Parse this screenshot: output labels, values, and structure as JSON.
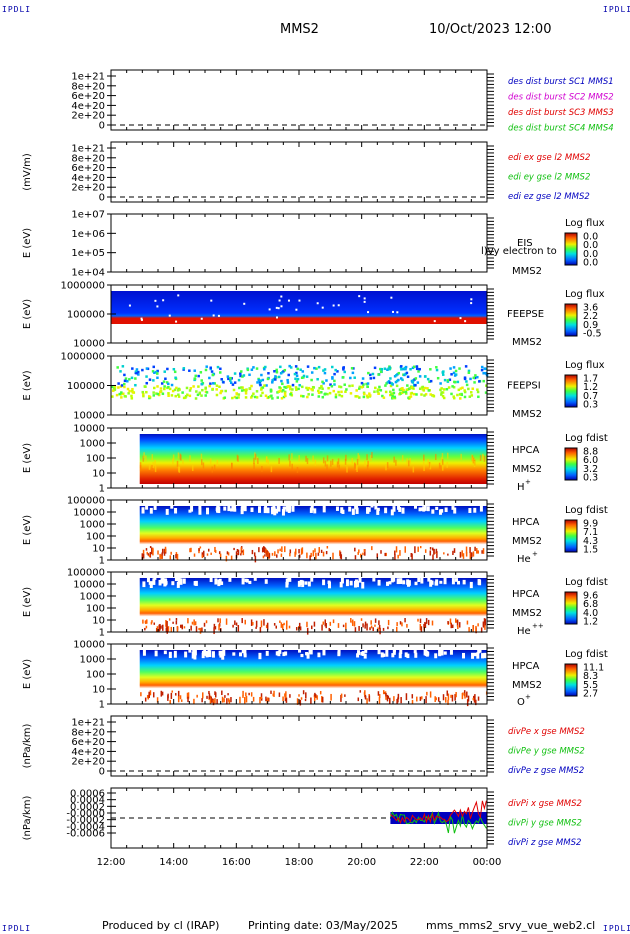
{
  "header": {
    "corner_tl": "IPDLI",
    "corner_tr": "IPDLI",
    "corner_bl": "IPDLI",
    "corner_br": "IPDLI",
    "spacecraft": "MMS2",
    "datetime": "10/Oct/2023 12:00"
  },
  "footer": {
    "producer": "Produced by cl (IRAP)",
    "printing_date": "Printing date: 03/May/2025",
    "script": "mms_mms2_srvy_vue_web2.cl"
  },
  "colors": {
    "red": "#e00000",
    "magenta": "#d000d0",
    "green": "#10c010",
    "blue": "#0000c0"
  },
  "chart_data": {
    "type": "heatmap",
    "x_axis": {
      "ticks": [
        "12:00",
        "14:00",
        "16:00",
        "18:00",
        "20:00",
        "22:00",
        "00:00"
      ],
      "range": [
        "12:00",
        "00:00"
      ]
    },
    "panels": [
      {
        "id": "dist",
        "kind": "line",
        "ylabel": "",
        "yticks": [
          "1e+21",
          "8e+20",
          "6e+20",
          "4e+20",
          "2e+20",
          "0"
        ],
        "zero_dashed": true,
        "legend": [
          {
            "text": "des dist burst SC1 MMS1",
            "color": "#0000c0"
          },
          {
            "text": "des dist burst SC2 MMS2",
            "color": "#d000d0"
          },
          {
            "text": "des dist burst SC3 MMS3",
            "color": "#e00000"
          },
          {
            "text": "des dist burst SC4 MMS4",
            "color": "#10c010"
          }
        ]
      },
      {
        "id": "edi",
        "kind": "line",
        "ylabel": "(mV/m)",
        "yticks": [
          "1e+21",
          "8e+20",
          "6e+20",
          "4e+20",
          "2e+20",
          "0"
        ],
        "zero_dashed": true,
        "legend": [
          {
            "text": "edi ex gse l2 MMS2",
            "color": "#e00000"
          },
          {
            "text": "edi ey gse l2 MMS2",
            "color": "#10c010"
          },
          {
            "text": "edi ez gse l2 MMS2",
            "color": "#0000c0"
          }
        ]
      },
      {
        "id": "eis",
        "kind": "spectrogram",
        "ylabel": "E (eV)",
        "yticks": [
          "1e+07",
          "1e+06",
          "1e+05",
          "1e+04"
        ],
        "instrument": "EIS",
        "spacecraft": "MMS2",
        "overlay_text": "l)vy electron to",
        "cbar_title": "Log flux",
        "cbar_ticks": [
          "0.0",
          "0.0",
          "0.0",
          "0.0"
        ]
      },
      {
        "id": "feepse",
        "kind": "spectrogram",
        "ylabel": "E (eV)",
        "yticks": [
          "1000000",
          "100000",
          "10000"
        ],
        "instrument": "FEEPSE",
        "spacecraft": "MMS2",
        "cbar_title": "Log flux",
        "cbar_ticks": [
          "3.6",
          "2.2",
          "0.9",
          "-0.5"
        ],
        "coverage": [
          "12:00",
          "00:00"
        ]
      },
      {
        "id": "feepsi",
        "kind": "spectrogram",
        "ylabel": "E (eV)",
        "yticks": [
          "1000000",
          "100000",
          "10000"
        ],
        "instrument": "FEEPSI",
        "spacecraft": "MMS2",
        "cbar_title": "Log flux",
        "cbar_ticks": [
          "1.7",
          "1.2",
          "0.7",
          "0.3"
        ],
        "coverage": [
          "12:00",
          "00:00"
        ]
      },
      {
        "id": "hpca_h",
        "kind": "spectrogram",
        "ylabel": "E (eV)",
        "yticks": [
          "10000",
          "1000",
          "100",
          "10",
          "1"
        ],
        "instrument": "HPCA",
        "spacecraft": "MMS2",
        "species": "H",
        "charge": "+",
        "cbar_title": "Log fdist",
        "cbar_ticks": [
          "8.8",
          "6.0",
          "3.2",
          "0.3"
        ],
        "coverage": [
          "12:55",
          "00:00"
        ]
      },
      {
        "id": "hpca_he1",
        "kind": "spectrogram",
        "ylabel": "E (eV)",
        "yticks": [
          "100000",
          "10000",
          "1000",
          "100",
          "10",
          "1"
        ],
        "instrument": "HPCA",
        "spacecraft": "MMS2",
        "species": "He",
        "charge": "+",
        "cbar_title": "Log fdist",
        "cbar_ticks": [
          "9.9",
          "7.1",
          "4.3",
          "1.5"
        ],
        "coverage": [
          "12:55",
          "00:00"
        ]
      },
      {
        "id": "hpca_he2",
        "kind": "spectrogram",
        "ylabel": "E (eV)",
        "yticks": [
          "100000",
          "10000",
          "1000",
          "100",
          "10",
          "1"
        ],
        "instrument": "HPCA",
        "spacecraft": "MMS2",
        "species": "He",
        "charge": "++",
        "cbar_title": "Log fdist",
        "cbar_ticks": [
          "9.6",
          "6.8",
          "4.0",
          "1.2"
        ],
        "coverage": [
          "12:55",
          "00:00"
        ]
      },
      {
        "id": "hpca_o",
        "kind": "spectrogram",
        "ylabel": "E (eV)",
        "yticks": [
          "10000",
          "1000",
          "100",
          "10",
          "1"
        ],
        "instrument": "HPCA",
        "spacecraft": "MMS2",
        "species": "O",
        "charge": "+",
        "cbar_title": "Log fdist",
        "cbar_ticks": [
          "11.1",
          "8.3",
          "5.5",
          "2.7"
        ],
        "coverage": [
          "12:55",
          "00:00"
        ]
      },
      {
        "id": "divpe",
        "kind": "line",
        "ylabel": "(nPa/km)",
        "yticks": [
          "1e+21",
          "8e+20",
          "6e+20",
          "4e+20",
          "2e+20",
          "0"
        ],
        "zero_dashed": true,
        "legend": [
          {
            "text": "divPe x gse MMS2",
            "color": "#e00000"
          },
          {
            "text": "divPe y gse MMS2",
            "color": "#10c010"
          },
          {
            "text": "divPe z gse MMS2",
            "color": "#0000c0"
          }
        ]
      },
      {
        "id": "divpi",
        "kind": "line",
        "ylabel": "(nPa/km)",
        "yticks": [
          "0.0006",
          "0.0004",
          "0.0002",
          "-0.0000",
          "-0.0002",
          "-0.0004",
          "-0.0006"
        ],
        "zero_dashed": true,
        "coverage": [
          "20:55",
          "00:00"
        ],
        "legend": [
          {
            "text": "divPi x gse MMS2",
            "color": "#e00000"
          },
          {
            "text": "divPi y gse MMS2",
            "color": "#10c010"
          },
          {
            "text": "divPi z gse MMS2",
            "color": "#0000c0"
          }
        ]
      }
    ]
  }
}
